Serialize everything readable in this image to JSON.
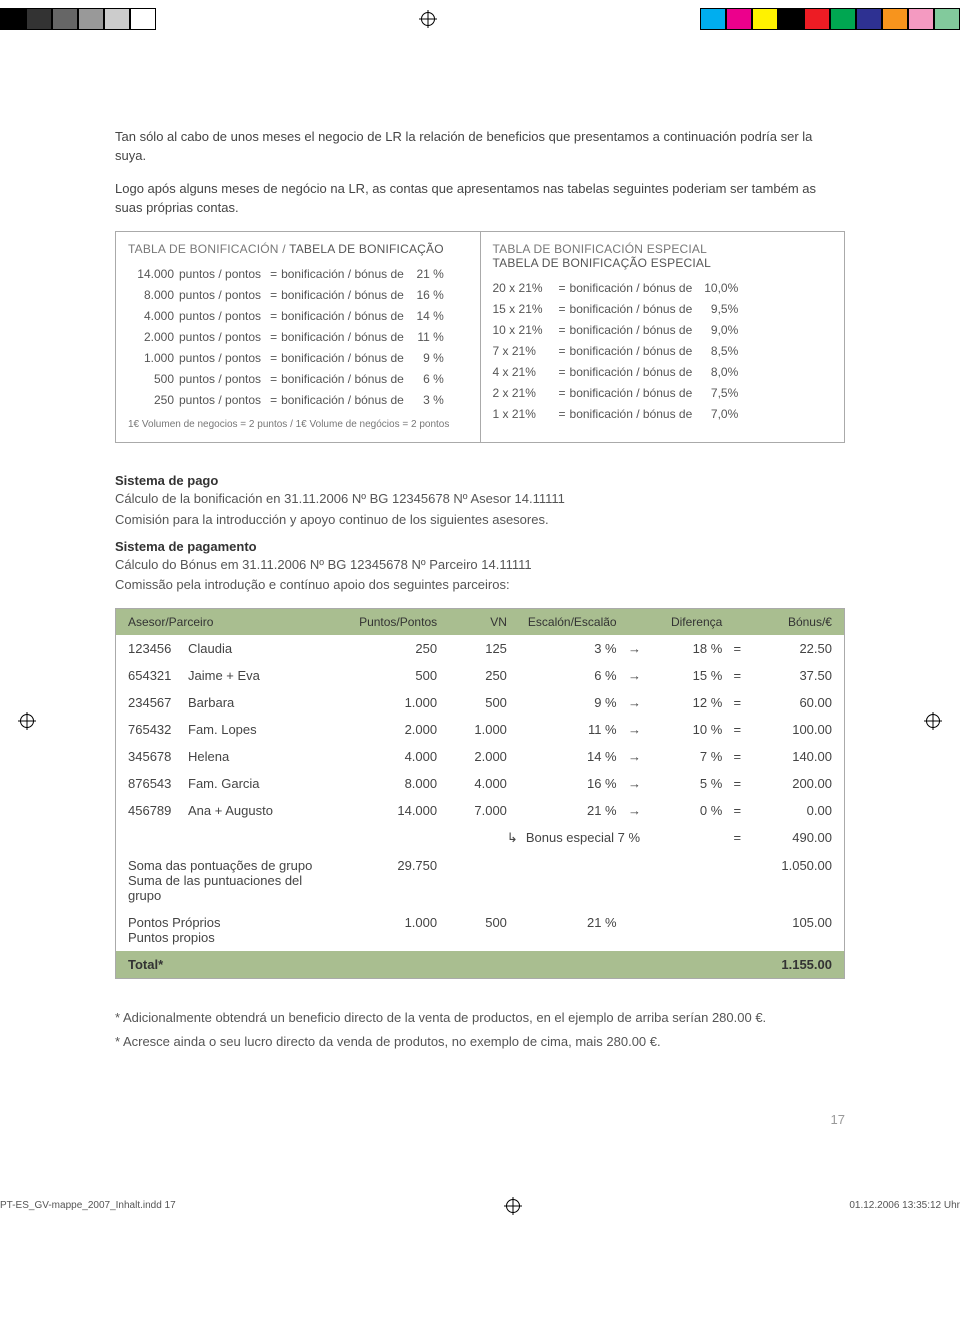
{
  "topbar": {
    "left_colors": [
      "#000000",
      "#333333",
      "#666666",
      "#999999",
      "#cccccc",
      "#ffffff"
    ],
    "right_colors": [
      "#00aeef",
      "#ec008c",
      "#fff200",
      "#000000",
      "#ed1c24",
      "#00a651",
      "#2e3192",
      "#f7941d",
      "#f49ac1",
      "#82ca9c"
    ]
  },
  "intro": {
    "p1": "Tan sólo al cabo de unos meses el negocio de LR la relación de beneficios que presentamos a continuación podría ser la suya.",
    "p2": "Logo após alguns meses de negócio na LR, as contas que apresentamos nas tabelas seguintes poderiam ser também as suas próprias contas."
  },
  "box_left": {
    "title_a": "TABLA DE BONIFICACIÓN",
    "title_sep": " / ",
    "title_b": "TABELA DE BONIFICAÇÃO",
    "mid_label": "puntos / pontos",
    "eq": "=",
    "key": "bonificación / bónus de",
    "rows": [
      {
        "pts": "14.000",
        "pct": "21 %"
      },
      {
        "pts": "8.000",
        "pct": "16 %"
      },
      {
        "pts": "4.000",
        "pct": "14 %"
      },
      {
        "pts": "2.000",
        "pct": "11 %"
      },
      {
        "pts": "1.000",
        "pct": "9 %"
      },
      {
        "pts": "500",
        "pct": "6 %"
      },
      {
        "pts": "250",
        "pct": "3 %"
      }
    ],
    "footnote": "1€ Volumen de negocios = 2 puntos / 1€ Volume de negócios = 2 pontos"
  },
  "box_right": {
    "title_a": "TABLA DE BONIFICACIÓN ESPECIAL",
    "title_b": "TABELA DE BONIFICAÇÃO ESPECIAL",
    "eq": "=",
    "key": "bonificación / bónus de",
    "rows": [
      {
        "mult": "20 x 21%",
        "pct": "10,0%"
      },
      {
        "mult": "15 x 21%",
        "pct": "9,5%"
      },
      {
        "mult": "10 x 21%",
        "pct": "9,0%"
      },
      {
        "mult": "7 x 21%",
        "pct": "8,5%"
      },
      {
        "mult": "4 x 21%",
        "pct": "8,0%"
      },
      {
        "mult": "2 x 21%",
        "pct": "7,5%"
      },
      {
        "mult": "1 x 21%",
        "pct": "7,0%"
      }
    ]
  },
  "pago": {
    "h1": "Sistema de pago",
    "l1": "Cálculo de la bonificación en 31.11.2006   Nº BG 12345678    Nº Asesor 14.11111",
    "l2": "Comisión para la introducción y apoyo continuo de los siguientes asesores.",
    "h2": "Sistema de pagamento",
    "l3": "Cálculo do Bónus em 31.11.2006  Nº BG 12345678    Nº Parceiro 14.11111",
    "l4": "Comissão pela introdução e contínuo apoio dos seguintes parceiros:"
  },
  "table": {
    "head": {
      "ap": "Asesor/Parceiro",
      "pp": "Puntos/Pontos",
      "vn": "VN",
      "esc": "Escalón/Escalão",
      "dif": "Diferença",
      "bon": "Bónus/€"
    },
    "rows": [
      {
        "id": "123456",
        "name": "Claudia",
        "pp": "250",
        "vn": "125",
        "esc": "3 %",
        "dif": "18 %",
        "bon": "22.50"
      },
      {
        "id": "654321",
        "name": "Jaime + Eva",
        "pp": "500",
        "vn": "250",
        "esc": "6 %",
        "dif": "15 %",
        "bon": "37.50"
      },
      {
        "id": "234567",
        "name": "Barbara",
        "pp": "1.000",
        "vn": "500",
        "esc": "9 %",
        "dif": "12 %",
        "bon": "60.00"
      },
      {
        "id": "765432",
        "name": "Fam. Lopes",
        "pp": "2.000",
        "vn": "1.000",
        "esc": "11 %",
        "dif": "10 %",
        "bon": "100.00"
      },
      {
        "id": "345678",
        "name": "Helena",
        "pp": "4.000",
        "vn": "2.000",
        "esc": "14 %",
        "dif": "7 %",
        "bon": "140.00"
      },
      {
        "id": "876543",
        "name": "Fam. Garcia",
        "pp": "8.000",
        "vn": "4.000",
        "esc": "16 %",
        "dif": "5 %",
        "bon": "200.00"
      },
      {
        "id": "456789",
        "name": "Ana + Augusto",
        "pp": "14.000",
        "vn": "7.000",
        "esc": "21 %",
        "dif": "0 %",
        "bon": "0.00"
      }
    ],
    "special": {
      "label": "Bonus especial 7 %",
      "eq": "=",
      "val": "490.00"
    },
    "sum1a": "Soma das pontuações de grupo",
    "sum1val": "29.750",
    "sum1bon": "1.050.00",
    "sum1b": "Suma de las puntuaciones del grupo",
    "prop_a": "Pontos Próprios",
    "prop_pp": "1.000",
    "prop_vn": "500",
    "prop_esc": "21 %",
    "prop_bon": "105.00",
    "prop_b": "Puntos propios",
    "total_label": "Total*",
    "total_val": "1.155.00",
    "arrow": "→",
    "eq": "="
  },
  "notes": {
    "n1": "* Adicionalmente obtendrá un beneficio directo de la venta de productos, en el ejemplo de arriba serían 280.00 €.",
    "n2": "* Acresce ainda o seu lucro directo da venda de produtos, no exemplo de cima, mais 280.00 €."
  },
  "pagenum": "17",
  "footer": {
    "file": "PT-ES_GV-mappe_2007_Inhalt.indd   17",
    "ts": "01.12.2006   13:35:12 Uhr"
  },
  "colors": {
    "accent": "#a9be90",
    "border": "#aaaaaa",
    "text": "#444444"
  }
}
